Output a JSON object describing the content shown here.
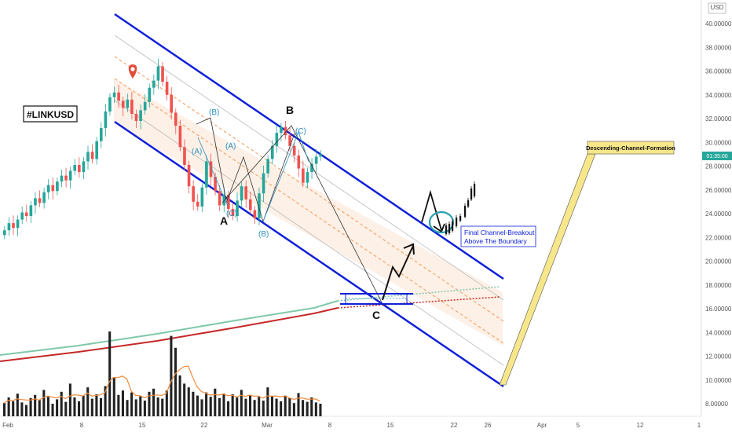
{
  "symbol_label": "#LINKUSD",
  "currency": "USD",
  "price_tag": "01:35:00",
  "annotations": {
    "descending_channel": "Descending-Channel-Formation",
    "breakout_line1": "Final Channel-Breakout",
    "breakout_line2": "Above The Boundary"
  },
  "wave_labels": {
    "A_big": "A",
    "B_big": "B",
    "C_big": "C",
    "a_small": "(A)",
    "b_small": "(B)",
    "c_small": "(C)",
    "a2_small": "(A)",
    "b2_small": "(B)",
    "c2_small": "(C)"
  },
  "colors": {
    "channel": "#1020d8",
    "bull": "#26a69a",
    "bear": "#ef5350",
    "ma_green": "#7fc8a9",
    "ma_red": "#c62828",
    "vol_ma": "#f08a3c",
    "label_blue": "#2a8fbf",
    "callout_fill": "#f7e78a"
  },
  "chart_data": {
    "type": "candlestick",
    "title": "#LINKUSD",
    "y_axis": {
      "unit": "USD",
      "ticks": [
        "40.00000",
        "38.00000",
        "36.00000",
        "34.00000",
        "32.00000",
        "30.00000",
        "28.00000",
        "26.00000",
        "24.00000",
        "22.00000",
        "20.00000",
        "18.00000",
        "16.00000",
        "14.00000",
        "12.00000",
        "10.00000",
        "8.00000"
      ],
      "current_price": "28.00000",
      "ylim": [
        8,
        40
      ]
    },
    "x_axis": {
      "ticks": [
        "Feb",
        "8",
        "15",
        "22",
        "Mar",
        "8",
        "15",
        "22",
        "26",
        "Apr",
        "5",
        "12",
        "1"
      ]
    },
    "price_series": [
      22.6,
      23.2,
      22.8,
      23.5,
      24.1,
      23.8,
      24.7,
      25.3,
      24.9,
      25.8,
      26.4,
      25.9,
      26.7,
      27.2,
      26.8,
      27.6,
      28.1,
      27.5,
      28.4,
      29.2,
      28.6,
      30.1,
      31.2,
      32.6,
      33.8,
      34.2,
      33.5,
      32.9,
      33.6,
      32.4,
      31.8,
      32.7,
      33.4,
      34.6,
      35.2,
      36.4,
      35.1,
      34.0,
      32.5,
      31.4,
      29.6,
      28.1,
      26.3,
      25.0,
      24.6,
      26.2,
      28.4,
      27.1,
      25.9,
      24.7,
      25.6,
      24.4,
      23.8,
      25.1,
      26.3,
      25.2,
      24.3,
      23.6,
      25.7,
      27.4,
      28.6,
      29.7,
      30.8,
      31.3,
      30.6,
      29.7,
      28.9,
      27.8,
      26.6,
      27.5,
      28.2,
      28.8,
      29.0
    ],
    "volume_series": [
      2.1,
      3.0,
      2.4,
      3.6,
      2.2,
      1.8,
      2.9,
      3.4,
      2.6,
      4.2,
      3.1,
      2.0,
      2.7,
      3.9,
      2.3,
      5.2,
      3.0,
      2.4,
      3.3,
      4.6,
      2.8,
      3.5,
      2.9,
      4.8,
      13.5,
      6.2,
      3.4,
      4.1,
      2.6,
      3.8,
      2.7,
      3.2,
      2.5,
      3.9,
      4.4,
      3.0,
      2.8,
      4.1,
      12.8,
      10.9,
      6.5,
      5.2,
      4.6,
      3.9,
      3.3,
      2.7,
      3.8,
      3.1,
      4.4,
      2.9,
      3.6,
      2.4,
      3.5,
      3.0,
      4.2,
      2.8,
      3.4,
      2.6,
      3.1,
      2.5,
      4.6,
      3.2,
      2.8,
      2.4,
      3.3,
      2.9,
      2.1,
      3.7,
      2.6,
      2.3,
      3.0,
      2.2,
      2.0
    ],
    "ma_long_green": [
      12.0,
      16.8
    ],
    "ma_long_red": [
      11.5,
      16.2
    ],
    "waves": [
      {
        "label": "A",
        "price": 24.0
      },
      {
        "label": "B",
        "price": 31.4
      },
      {
        "label": "C",
        "price": 16.5
      }
    ]
  }
}
